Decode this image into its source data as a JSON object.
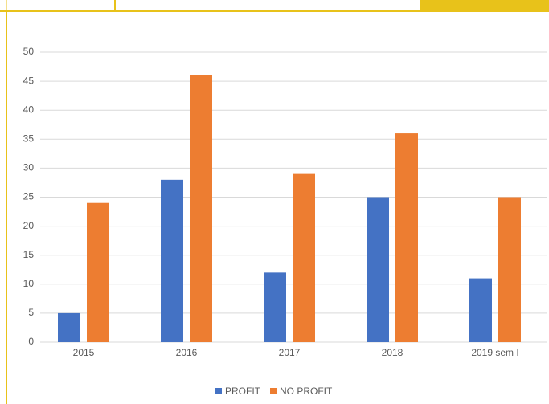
{
  "chart_data": {
    "type": "bar",
    "categories": [
      "2015",
      "2016",
      "2017",
      "2018",
      "2019 sem I"
    ],
    "series": [
      {
        "name": "PROFIT",
        "color": "#4472c4",
        "values": [
          5,
          28,
          12,
          25,
          11
        ]
      },
      {
        "name": "NO PROFIT",
        "color": "#ed7d31",
        "values": [
          24,
          46,
          29,
          36,
          25
        ]
      }
    ],
    "ylim": [
      0,
      50
    ],
    "yticks": [
      0,
      5,
      10,
      15,
      20,
      25,
      30,
      35,
      40,
      45,
      50
    ],
    "grid": true
  }
}
